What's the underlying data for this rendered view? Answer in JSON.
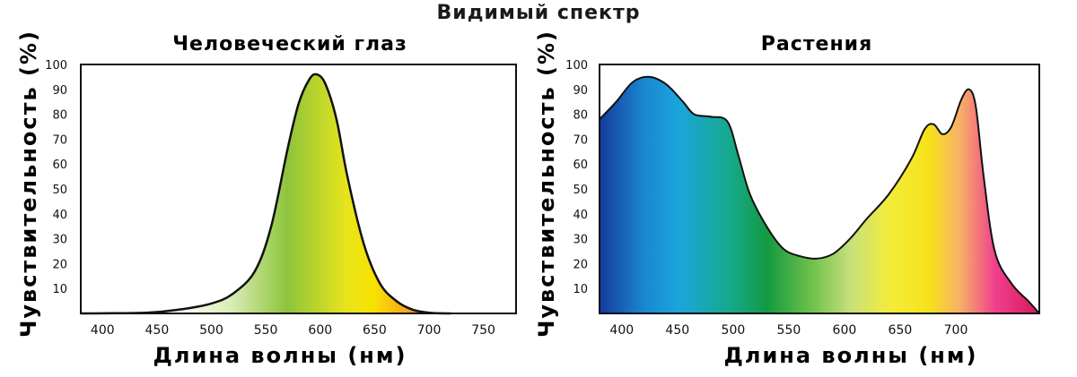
{
  "main_title": "Видимый спектр",
  "chart_data": [
    {
      "type": "area",
      "title": "Человеческий глаз",
      "xlabel": "Длина волны (нм)",
      "ylabel": "Чувствительность (%)",
      "xlim": [
        380,
        780
      ],
      "ylim": [
        0,
        100
      ],
      "x_ticks": [
        "400",
        "450",
        "500",
        "550",
        "600",
        "650",
        "700",
        "750"
      ],
      "y_ticks": [
        "10",
        "20",
        "30",
        "40",
        "50",
        "60",
        "70",
        "80",
        "90",
        "100"
      ],
      "grid": false,
      "series": [
        {
          "x": [
            380,
            440,
            470,
            500,
            520,
            540,
            555,
            570,
            580,
            590,
            597,
            605,
            615,
            625,
            640,
            655,
            670,
            685,
            700,
            720
          ],
          "y": [
            0,
            0.3,
            1.5,
            4,
            8,
            17,
            35,
            66,
            84,
            94,
            96,
            92,
            78,
            55,
            28,
            12,
            5,
            1.5,
            0.3,
            0
          ]
        }
      ],
      "colors": [
        "#7ab526",
        "#dfe01a",
        "#f7e600",
        "#f7a21e",
        "#ea2a1c"
      ]
    },
    {
      "type": "area",
      "title": "Растения",
      "xlabel": "Длина волны (нм)",
      "ylabel": "Чувствительность (%)",
      "xlim": [
        380,
        775
      ],
      "ylim": [
        0,
        100
      ],
      "x_ticks": [
        "400",
        "450",
        "500",
        "550",
        "600",
        "650",
        "700"
      ],
      "y_ticks": [
        "10",
        "20",
        "30",
        "40",
        "50",
        "60",
        "70",
        "80",
        "90",
        "100"
      ],
      "grid": false,
      "series": [
        {
          "x": [
            380,
            395,
            410,
            425,
            440,
            455,
            465,
            480,
            495,
            505,
            515,
            530,
            545,
            560,
            575,
            590,
            605,
            620,
            640,
            660,
            672,
            680,
            688,
            696,
            705,
            712,
            718,
            725,
            735,
            750,
            765,
            775
          ],
          "y": [
            78,
            85,
            93,
            95,
            92,
            85,
            80,
            79,
            77,
            63,
            48,
            35,
            26,
            23,
            22,
            24,
            30,
            38,
            48,
            62,
            74,
            76,
            72,
            75,
            86,
            90,
            83,
            55,
            25,
            12,
            5,
            0
          ]
        }
      ],
      "colors": [
        "#123c9e",
        "#1c9ad9",
        "#14a34b",
        "#8cc63f",
        "#f4e618",
        "#f7a83a",
        "#e8337a"
      ]
    }
  ]
}
